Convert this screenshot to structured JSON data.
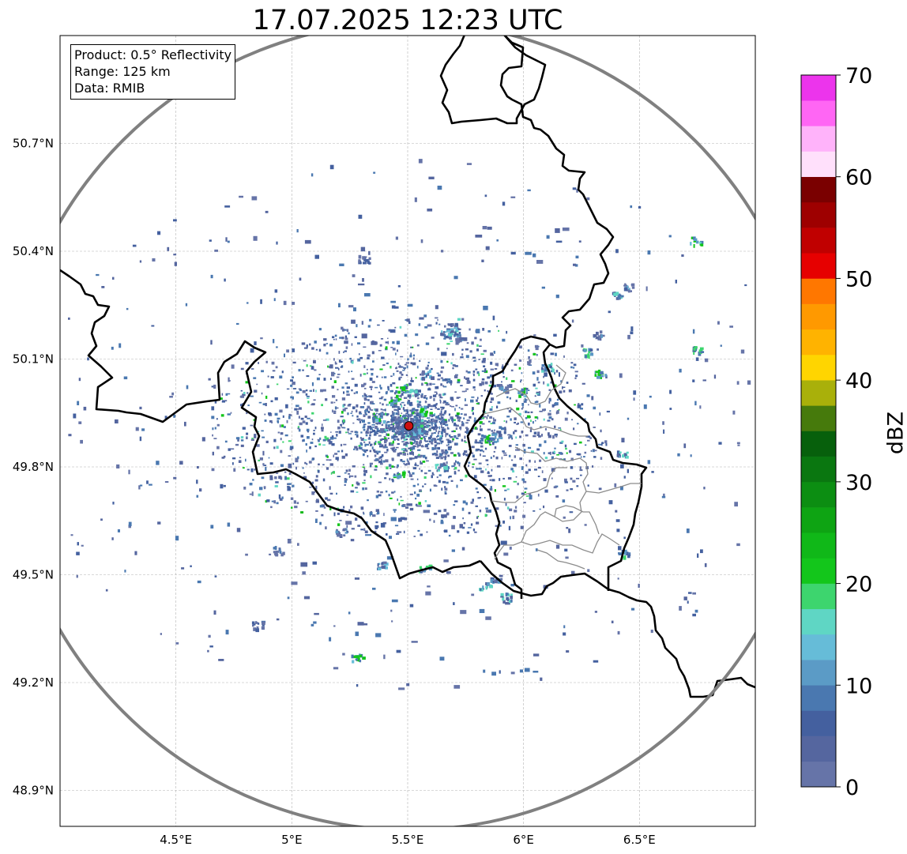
{
  "title": "17.07.2025 12:23 UTC",
  "info_box": {
    "product": "Product: 0.5° Reflectivity",
    "range": "Range: 125 km",
    "data_source": "Data: RMIB"
  },
  "axes": {
    "lon_range": [
      4.0,
      7.0
    ],
    "lat_range": [
      48.8,
      51.0
    ],
    "x_ticks": [
      {
        "value": 4.5,
        "label": "4.5°E"
      },
      {
        "value": 5.0,
        "label": "5°E"
      },
      {
        "value": 5.5,
        "label": "5.5°E"
      },
      {
        "value": 6.0,
        "label": "6°E"
      },
      {
        "value": 6.5,
        "label": "6.5°E"
      }
    ],
    "y_ticks": [
      {
        "value": 50.7,
        "label": "50.7°N"
      },
      {
        "value": 50.4,
        "label": "50.4°N"
      },
      {
        "value": 50.1,
        "label": "50.1°N"
      },
      {
        "value": 49.8,
        "label": "49.8°N"
      },
      {
        "value": 49.5,
        "label": "49.5°N"
      },
      {
        "value": 49.2,
        "label": "49.2°N"
      },
      {
        "value": 48.9,
        "label": "48.9°N"
      }
    ],
    "grid": true
  },
  "radar": {
    "site_lon": 5.505,
    "site_lat": 49.914,
    "range_km": 125,
    "ring_color": "#808080",
    "site_color": "#cc1111"
  },
  "colorbar": {
    "label": "dBZ",
    "min": 0,
    "max": 70,
    "step": 2.5,
    "ticks": [
      {
        "value": 0,
        "label": "0"
      },
      {
        "value": 10,
        "label": "10"
      },
      {
        "value": 20,
        "label": "20"
      },
      {
        "value": 30,
        "label": "30"
      },
      {
        "value": 40,
        "label": "40"
      },
      {
        "value": 50,
        "label": "50"
      },
      {
        "value": 60,
        "label": "60"
      },
      {
        "value": 70,
        "label": "70"
      }
    ],
    "colors": [
      "#6674a8",
      "#55669f",
      "#44609f",
      "#4a78b0",
      "#5b9bc6",
      "#66bcd8",
      "#5fd6c4",
      "#3dd56e",
      "#13c61b",
      "#10b818",
      "#0ea413",
      "#0c8e12",
      "#0a7710",
      "#07600c",
      "#467a0c",
      "#a9b00a",
      "#ffd500",
      "#ffb300",
      "#ff9900",
      "#ff7700",
      "#e60000",
      "#c00000",
      "#9e0000",
      "#7a0000",
      "#ffe0fb",
      "#ffb3fa",
      "#ff66f4",
      "#ec34ec"
    ]
  },
  "reflectivity_cells": [
    [
      5.5,
      49.915,
      10
    ],
    [
      5.46,
      49.93,
      12
    ],
    [
      5.54,
      49.9,
      14
    ],
    [
      5.44,
      49.99,
      22
    ],
    [
      5.47,
      50.02,
      20
    ],
    [
      5.52,
      50.01,
      17
    ],
    [
      5.57,
      49.96,
      22
    ],
    [
      5.58,
      50.06,
      13
    ],
    [
      5.66,
      50.17,
      14
    ],
    [
      5.72,
      50.16,
      12
    ],
    [
      5.7,
      50.18,
      16
    ],
    [
      5.69,
      50.19,
      13
    ],
    [
      5.37,
      49.94,
      20
    ],
    [
      5.46,
      49.78,
      21
    ],
    [
      5.64,
      49.8,
      16
    ],
    [
      5.88,
      49.89,
      12
    ],
    [
      5.85,
      49.88,
      20
    ],
    [
      5.91,
      50.02,
      10
    ],
    [
      5.99,
      50.01,
      20
    ],
    [
      6.1,
      50.08,
      16
    ],
    [
      6.27,
      50.12,
      18
    ],
    [
      6.32,
      50.17,
      11
    ],
    [
      6.4,
      50.28,
      16
    ],
    [
      6.45,
      50.3,
      13
    ],
    [
      6.33,
      50.06,
      22
    ],
    [
      6.42,
      49.84,
      16
    ],
    [
      6.43,
      49.56,
      18
    ],
    [
      6.74,
      50.43,
      22
    ],
    [
      6.74,
      50.13,
      18
    ],
    [
      5.83,
      49.47,
      17
    ],
    [
      5.88,
      49.49,
      12
    ],
    [
      5.92,
      49.44,
      16
    ],
    [
      5.38,
      49.53,
      14
    ],
    [
      5.57,
      49.52,
      19
    ],
    [
      5.28,
      49.27,
      22
    ],
    [
      5.21,
      49.62,
      10
    ],
    [
      4.94,
      49.57,
      8
    ],
    [
      4.85,
      49.36,
      5
    ],
    [
      5.31,
      50.38,
      6
    ]
  ]
}
